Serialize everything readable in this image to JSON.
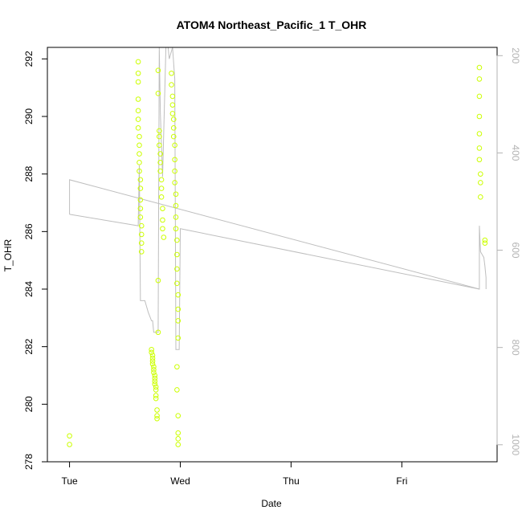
{
  "chart_data": {
    "type": "scatter",
    "title": "ATOM4 Northeast_Pacific_1 T_OHR",
    "xlabel": "Date",
    "ylabel": "T_OHR",
    "x_ticks": [
      "Tue",
      "Wed",
      "Thu",
      "Fri"
    ],
    "x_tick_days": [
      0,
      1,
      2,
      3
    ],
    "xlim_days": [
      -0.2,
      3.86
    ],
    "ylim": [
      278,
      292.4
    ],
    "y_ticks": [
      278,
      280,
      282,
      284,
      286,
      288,
      290,
      292
    ],
    "y2_ticks": [
      200,
      400,
      600,
      800,
      1000
    ],
    "y2lim": [
      1035,
      183
    ],
    "grid": false,
    "colors": {
      "points": "#ccff00",
      "profile_line": "#bebebe",
      "axis": "#000000",
      "right_axis": "#b3b3b3"
    },
    "series": [
      {
        "kind": "points",
        "points": [
          [
            0.0,
            278.9
          ],
          [
            0.0,
            278.6
          ],
          [
            0.62,
            291.9
          ],
          [
            0.62,
            291.5
          ],
          [
            0.62,
            291.2
          ],
          [
            0.62,
            290.6
          ],
          [
            0.62,
            290.2
          ],
          [
            0.62,
            289.9
          ],
          [
            0.62,
            289.6
          ],
          [
            0.63,
            289.3
          ],
          [
            0.63,
            289.0
          ],
          [
            0.63,
            288.7
          ],
          [
            0.63,
            288.4
          ],
          [
            0.63,
            288.1
          ],
          [
            0.64,
            287.8
          ],
          [
            0.64,
            287.5
          ],
          [
            0.64,
            287.1
          ],
          [
            0.64,
            286.8
          ],
          [
            0.64,
            286.5
          ],
          [
            0.65,
            286.2
          ],
          [
            0.65,
            285.9
          ],
          [
            0.65,
            285.6
          ],
          [
            0.65,
            285.3
          ],
          [
            0.74,
            281.9
          ],
          [
            0.74,
            281.8
          ],
          [
            0.75,
            281.7
          ],
          [
            0.75,
            281.6
          ],
          [
            0.75,
            281.5
          ],
          [
            0.75,
            281.4
          ],
          [
            0.76,
            281.3
          ],
          [
            0.76,
            281.2
          ],
          [
            0.76,
            281.1
          ],
          [
            0.77,
            281.0
          ],
          [
            0.77,
            280.9
          ],
          [
            0.77,
            280.8
          ],
          [
            0.77,
            280.7
          ],
          [
            0.78,
            280.6
          ],
          [
            0.78,
            280.5
          ],
          [
            0.78,
            280.3
          ],
          [
            0.78,
            280.2
          ],
          [
            0.79,
            279.8
          ],
          [
            0.79,
            279.6
          ],
          [
            0.79,
            279.5
          ],
          [
            0.8,
            291.6
          ],
          [
            0.8,
            290.8
          ],
          [
            0.8,
            284.3
          ],
          [
            0.8,
            282.5
          ],
          [
            0.81,
            289.5
          ],
          [
            0.81,
            289.3
          ],
          [
            0.81,
            289.0
          ],
          [
            0.82,
            288.7
          ],
          [
            0.82,
            288.4
          ],
          [
            0.82,
            288.1
          ],
          [
            0.83,
            287.8
          ],
          [
            0.83,
            287.5
          ],
          [
            0.83,
            287.2
          ],
          [
            0.84,
            286.8
          ],
          [
            0.84,
            286.4
          ],
          [
            0.84,
            286.1
          ],
          [
            0.85,
            285.8
          ],
          [
            0.92,
            291.5
          ],
          [
            0.92,
            291.1
          ],
          [
            0.93,
            290.7
          ],
          [
            0.93,
            290.4
          ],
          [
            0.93,
            290.1
          ],
          [
            0.94,
            289.9
          ],
          [
            0.94,
            289.6
          ],
          [
            0.94,
            289.3
          ],
          [
            0.95,
            289.0
          ],
          [
            0.95,
            288.5
          ],
          [
            0.95,
            288.1
          ],
          [
            0.95,
            287.7
          ],
          [
            0.96,
            287.3
          ],
          [
            0.96,
            286.9
          ],
          [
            0.96,
            286.5
          ],
          [
            0.96,
            286.1
          ],
          [
            0.97,
            285.7
          ],
          [
            0.97,
            285.2
          ],
          [
            0.97,
            284.7
          ],
          [
            0.97,
            284.2
          ],
          [
            0.98,
            283.8
          ],
          [
            0.98,
            283.3
          ],
          [
            0.98,
            282.9
          ],
          [
            0.98,
            282.3
          ],
          [
            0.97,
            281.3
          ],
          [
            0.97,
            280.5
          ],
          [
            0.98,
            279.6
          ],
          [
            0.98,
            279.0
          ],
          [
            0.98,
            278.8
          ],
          [
            0.98,
            278.6
          ],
          [
            3.7,
            291.7
          ],
          [
            3.7,
            291.3
          ],
          [
            3.7,
            290.7
          ],
          [
            3.7,
            290.0
          ],
          [
            3.7,
            289.4
          ],
          [
            3.7,
            288.9
          ],
          [
            3.7,
            288.5
          ],
          [
            3.71,
            288.0
          ],
          [
            3.71,
            287.7
          ],
          [
            3.71,
            287.2
          ],
          [
            3.75,
            285.7
          ],
          [
            3.75,
            285.6
          ]
        ]
      },
      {
        "kind": "line",
        "points": [
          [
            0.0,
            286.6
          ],
          [
            0.0,
            287.8
          ],
          [
            3.7,
            284.0
          ],
          [
            3.7,
            286.2
          ],
          [
            3.71,
            285.3
          ],
          [
            3.74,
            285.1
          ],
          [
            3.75,
            284.8
          ],
          [
            3.76,
            284.4
          ],
          [
            3.76,
            284.0
          ]
        ]
      },
      {
        "kind": "line",
        "points": [
          [
            0.0,
            286.6
          ],
          [
            0.62,
            286.2
          ],
          [
            0.63,
            288.3
          ],
          [
            0.64,
            283.6
          ],
          [
            0.68,
            283.6
          ],
          [
            0.71,
            283.2
          ],
          [
            0.74,
            282.9
          ],
          [
            0.75,
            282.9
          ],
          [
            0.76,
            282.5
          ],
          [
            0.8,
            282.5
          ],
          [
            0.81,
            292.4
          ],
          [
            0.82,
            290.1
          ],
          [
            0.84,
            287.9
          ],
          [
            0.87,
            292.4
          ],
          [
            0.89,
            292.4
          ],
          [
            0.9,
            292.0
          ],
          [
            0.93,
            292.4
          ],
          [
            0.95,
            291.3
          ],
          [
            0.96,
            281.9
          ],
          [
            0.99,
            281.9
          ],
          [
            1.0,
            286.1
          ],
          [
            3.7,
            284.0
          ]
        ]
      }
    ]
  }
}
